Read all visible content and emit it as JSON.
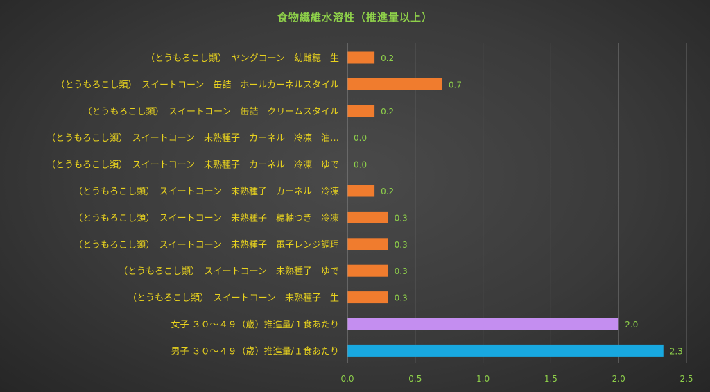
{
  "chart_data": {
    "type": "bar",
    "orientation": "horizontal",
    "title": "食物繊維水溶性（推進量以上）",
    "categories": [
      "（とうもろこし類）　ヤングコーン　幼雌穂　生",
      "（とうもろこし類）　スイートコーン　缶詰　ホールカーネルスタイル",
      "（とうもろこし類）　スイートコーン　缶詰　クリームスタイル",
      "（とうもろこし類）　スイートコーン　未熟種子　カーネル　冷凍　油…",
      "（とうもろこし類）　スイートコーン　未熟種子　カーネル　冷凍　ゆで",
      "（とうもろこし類）　スイートコーン　未熟種子　カーネル　冷凍",
      "（とうもろこし類）　スイートコーン　未熟種子　穂軸つき　冷凍",
      "（とうもろこし類）　スイートコーン　未熟種子　電子レンジ調理",
      "（とうもろこし類）　スイートコーン　未熟種子　ゆで",
      "（とうもろこし類）　スイートコーン　未熟種子　生",
      "女子 ３０～４９（歳）推進量/１食あたり",
      "男子 ３０～４９（歳）推進量/１食あたり"
    ],
    "values": [
      0.2,
      0.7,
      0.2,
      0.0,
      0.0,
      0.2,
      0.3,
      0.3,
      0.3,
      0.3,
      2.0,
      2.33
    ],
    "value_labels": [
      "0.2",
      "0.7",
      "0.2",
      "0.0",
      "0.0",
      "0.2",
      "0.3",
      "0.3",
      "0.3",
      "0.3",
      "2.0",
      "2.3"
    ],
    "bar_colors": [
      "#f07c2e",
      "#f07c2e",
      "#f07c2e",
      "#f07c2e",
      "#f07c2e",
      "#f07c2e",
      "#f07c2e",
      "#f07c2e",
      "#f07c2e",
      "#f07c2e",
      "#c48ef0",
      "#18a8e0"
    ],
    "xlim": [
      0,
      2.5
    ],
    "xticks": [
      "0.0",
      "0.5",
      "1.0",
      "1.5",
      "2.0",
      "2.5"
    ],
    "xlabel": "",
    "ylabel": "",
    "grid": "vertical",
    "legend": "none",
    "colors": {
      "title": "#8ed04a",
      "category_label": "#e8d21e",
      "value_label": "#8ed04a",
      "tick_label": "#8ed04a",
      "gridline": "#6a6a6a"
    }
  }
}
